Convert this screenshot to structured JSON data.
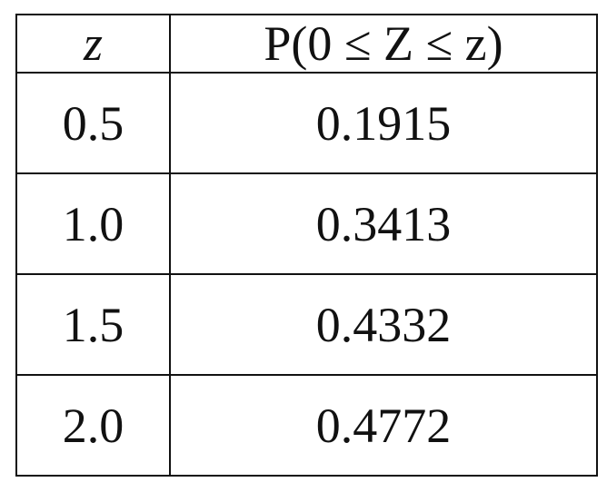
{
  "table": {
    "header": [
      "z",
      "P(0 ≤ Z ≤ z)"
    ],
    "rows": [
      [
        "0.5",
        "0.1915"
      ],
      [
        "1.0",
        "0.3413"
      ],
      [
        "1.5",
        "0.4332"
      ],
      [
        "2.0",
        "0.4772"
      ]
    ]
  }
}
